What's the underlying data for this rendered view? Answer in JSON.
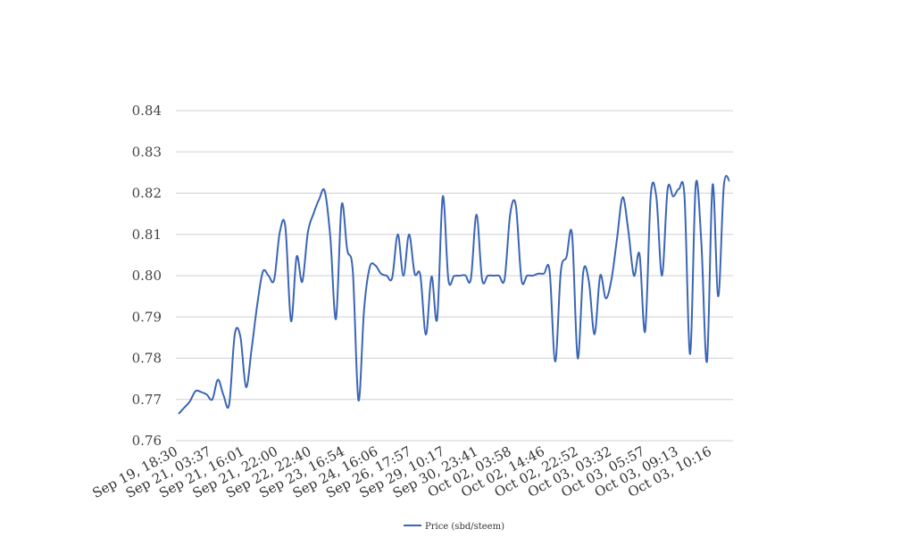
{
  "chart_data": {
    "type": "line",
    "title": "",
    "xlabel": "",
    "ylabel": "",
    "ylim": [
      0.76,
      0.84
    ],
    "yticks": [
      "0.76",
      "0.77",
      "0.78",
      "0.79",
      "0.80",
      "0.81",
      "0.82",
      "0.83",
      "0.84"
    ],
    "xtick_labels": [
      "Sep 19, 18:30",
      "Sep 21, 03:37",
      "Sep 21, 16:01",
      "Sep 21, 22:00",
      "Sep 22, 22:40",
      "Sep 23, 16:54",
      "Sep 24, 16:06",
      "Sep 26, 17:57",
      "Sep 29, 10:17",
      "Sep 30, 23:41",
      "Oct 02, 03:58",
      "Oct 02, 14:46",
      "Oct 02, 22:52",
      "Oct 03, 03:32",
      "Oct 03, 05:57",
      "Oct 03, 09:13",
      "Oct 03, 10:16"
    ],
    "grid": true,
    "legend_position": "bottom",
    "colors": {
      "series": "#3b66b5",
      "grid": "#d0d0d0"
    },
    "series": [
      {
        "name": "Price (sbd/steem)",
        "values": [
          0.7665,
          0.768,
          0.7695,
          0.772,
          0.7718,
          0.7712,
          0.77,
          0.7748,
          0.771,
          0.7688,
          0.7858,
          0.7852,
          0.773,
          0.7823,
          0.793,
          0.801,
          0.8,
          0.799,
          0.8105,
          0.8118,
          0.789,
          0.8046,
          0.7985,
          0.8105,
          0.815,
          0.8185,
          0.8205,
          0.8092,
          0.7895,
          0.8171,
          0.8063,
          0.801,
          0.7698,
          0.7918,
          0.802,
          0.8025,
          0.8005,
          0.8,
          0.7995,
          0.81,
          0.8,
          0.81,
          0.8005,
          0.8002,
          0.7857,
          0.7998,
          0.7895,
          0.8192,
          0.799,
          0.7999,
          0.8,
          0.8001,
          0.7992,
          0.8148,
          0.799,
          0.8,
          0.8,
          0.8,
          0.7992,
          0.815,
          0.817,
          0.799,
          0.8,
          0.8,
          0.8005,
          0.8005,
          0.8012,
          0.7792,
          0.801,
          0.8045,
          0.81,
          0.78,
          0.801,
          0.7985,
          0.7858,
          0.8,
          0.7945,
          0.799,
          0.809,
          0.819,
          0.811,
          0.8,
          0.8052,
          0.7865,
          0.8195,
          0.819,
          0.8,
          0.821,
          0.8192,
          0.821,
          0.8192,
          0.781,
          0.822,
          0.808,
          0.7792,
          0.822,
          0.795,
          0.8218,
          0.823
        ]
      }
    ]
  }
}
